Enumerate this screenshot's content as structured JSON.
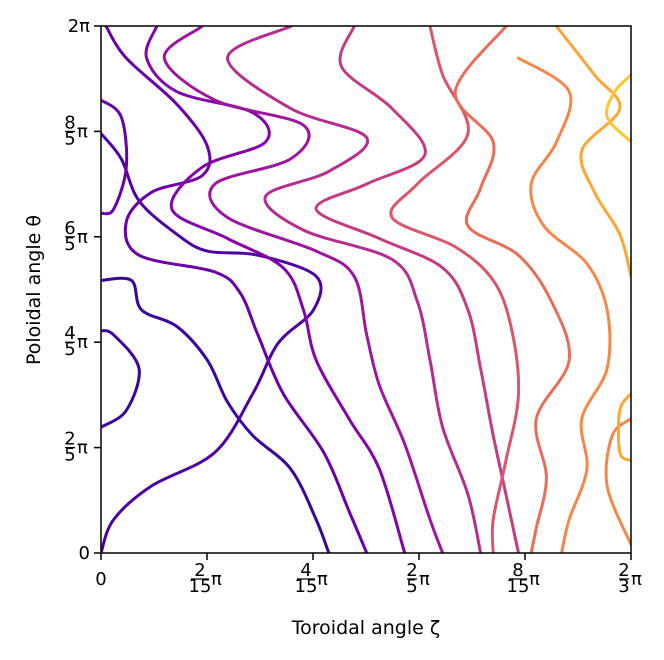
{
  "chart_data": {
    "type": "contour",
    "title": "",
    "xlabel": "Toroidal angle ζ",
    "ylabel": "Poloidal angle θ",
    "xlim": [
      0,
      2.0944
    ],
    "ylim": [
      0,
      6.2832
    ],
    "grid": false,
    "legend": "none",
    "colormap": "plasma",
    "x_ticks": [
      {
        "value": 0,
        "num": "0",
        "den": "",
        "suffix": ""
      },
      {
        "value": 0.41888,
        "num": "2",
        "den": "15",
        "suffix": "π"
      },
      {
        "value": 0.83776,
        "num": "4",
        "den": "15",
        "suffix": "π"
      },
      {
        "value": 1.25664,
        "num": "2",
        "den": "5",
        "suffix": "π"
      },
      {
        "value": 1.67552,
        "num": "8",
        "den": "15",
        "suffix": "π"
      },
      {
        "value": 2.0944,
        "num": "2",
        "den": "3",
        "suffix": "π"
      }
    ],
    "y_ticks": [
      {
        "value": 0,
        "num": "0",
        "den": "",
        "suffix": ""
      },
      {
        "value": 1.25664,
        "num": "2",
        "den": "5",
        "suffix": "π"
      },
      {
        "value": 2.51327,
        "num": "4",
        "den": "5",
        "suffix": "π"
      },
      {
        "value": 3.76991,
        "num": "6",
        "den": "5",
        "suffix": "π"
      },
      {
        "value": 5.02655,
        "num": "8",
        "den": "5",
        "suffix": "π"
      },
      {
        "value": 6.28319,
        "num": "2",
        "den": "",
        "suffix": "π"
      }
    ],
    "contours": [
      {
        "level": 0.0,
        "color": "#3b049a",
        "lines": [
          [
            [
              0,
              1.5
            ],
            [
              0.1,
              1.7
            ],
            [
              0.15,
              2.2
            ],
            [
              0.05,
              2.6
            ],
            [
              0,
              2.65
            ]
          ],
          [
            [
              0,
              3.25
            ],
            [
              0.12,
              3.25
            ],
            [
              0.16,
              2.9
            ],
            [
              0.3,
              2.7
            ],
            [
              0.42,
              2.3
            ],
            [
              0.5,
              1.8
            ],
            [
              0.6,
              1.4
            ],
            [
              0.75,
              1.0
            ],
            [
              0.85,
              0.4
            ],
            [
              0.9,
              0
            ]
          ]
        ]
      },
      {
        "level": 0.1,
        "color": "#4c02a1",
        "lines": [
          [
            [
              0,
              0
            ],
            [
              0.05,
              0.4
            ],
            [
              0.2,
              0.8
            ],
            [
              0.45,
              1.2
            ],
            [
              0.6,
              1.9
            ],
            [
              0.7,
              2.5
            ],
            [
              0.84,
              2.9
            ],
            [
              0.85,
              3.3
            ],
            [
              0.62,
              3.55
            ],
            [
              0.42,
              3.6
            ],
            [
              0.3,
              3.8
            ],
            [
              0.15,
              4.2
            ],
            [
              0.08,
              4.7
            ],
            [
              0,
              5.0
            ]
          ]
        ]
      },
      {
        "level": 0.2,
        "color": "#6a00a8",
        "lines": [
          [
            [
              0.02,
              6.28
            ],
            [
              0.1,
              5.9
            ],
            [
              0.3,
              5.35
            ],
            [
              0.42,
              4.85
            ],
            [
              0.4,
              4.5
            ],
            [
              0.2,
              4.3
            ],
            [
              0.1,
              3.95
            ],
            [
              0.15,
              3.55
            ],
            [
              0.45,
              3.35
            ],
            [
              0.55,
              3.1
            ],
            [
              0.62,
              2.6
            ],
            [
              0.72,
              1.9
            ],
            [
              0.88,
              1.2
            ],
            [
              0.98,
              0.5
            ],
            [
              1.05,
              0
            ]
          ],
          [
            [
              0,
              5.4
            ],
            [
              0.08,
              5.2
            ],
            [
              0.1,
              4.6
            ],
            [
              0.05,
              4.1
            ],
            [
              0,
              4.05
            ]
          ]
        ]
      },
      {
        "level": 0.3,
        "color": "#8405a7",
        "lines": [
          [
            [
              0.22,
              6.28
            ],
            [
              0.18,
              5.9
            ],
            [
              0.3,
              5.5
            ],
            [
              0.6,
              5.25
            ],
            [
              0.65,
              4.9
            ],
            [
              0.4,
              4.6
            ],
            [
              0.28,
              4.1
            ],
            [
              0.5,
              3.75
            ],
            [
              0.72,
              3.4
            ],
            [
              0.8,
              2.9
            ],
            [
              0.85,
              2.3
            ],
            [
              0.98,
              1.6
            ],
            [
              1.1,
              1.0
            ],
            [
              1.2,
              0
            ]
          ]
        ]
      },
      {
        "level": 0.4,
        "color": "#9c179e",
        "lines": [
          [
            [
              0.4,
              6.28
            ],
            [
              0.25,
              5.9
            ],
            [
              0.45,
              5.4
            ],
            [
              0.8,
              5.1
            ],
            [
              0.75,
              4.7
            ],
            [
              0.45,
              4.4
            ],
            [
              0.5,
              4.0
            ],
            [
              0.85,
              3.6
            ],
            [
              1.0,
              3.3
            ],
            [
              1.05,
              2.6
            ],
            [
              1.1,
              2.0
            ],
            [
              1.2,
              1.3
            ],
            [
              1.3,
              0.4
            ],
            [
              1.35,
              0
            ]
          ]
        ]
      },
      {
        "level": 0.5,
        "color": "#b42e8f",
        "lines": [
          [
            [
              0.75,
              6.28
            ],
            [
              0.5,
              5.9
            ],
            [
              0.75,
              5.3
            ],
            [
              1.05,
              4.95
            ],
            [
              0.9,
              4.55
            ],
            [
              0.65,
              4.25
            ],
            [
              0.8,
              3.85
            ],
            [
              1.15,
              3.5
            ],
            [
              1.25,
              3.0
            ],
            [
              1.3,
              2.3
            ],
            [
              1.35,
              1.5
            ],
            [
              1.45,
              0.7
            ],
            [
              1.5,
              0
            ]
          ]
        ]
      },
      {
        "level": 0.6,
        "color": "#c33d80",
        "lines": [
          [
            [
              1.0,
              6.28
            ],
            [
              0.95,
              5.8
            ],
            [
              1.15,
              5.3
            ],
            [
              1.28,
              4.75
            ],
            [
              1.05,
              4.4
            ],
            [
              0.85,
              4.1
            ],
            [
              1.1,
              3.75
            ],
            [
              1.35,
              3.4
            ],
            [
              1.45,
              2.9
            ],
            [
              1.5,
              2.2
            ],
            [
              1.55,
              1.4
            ],
            [
              1.6,
              0.7
            ],
            [
              1.65,
              0
            ]
          ]
        ]
      },
      {
        "level": 0.7,
        "color": "#d8576b",
        "lines": [
          [
            [
              1.3,
              6.28
            ],
            [
              1.35,
              5.7
            ],
            [
              1.45,
              5.0
            ],
            [
              1.25,
              4.4
            ],
            [
              1.15,
              4.0
            ],
            [
              1.4,
              3.65
            ],
            [
              1.55,
              3.25
            ],
            [
              1.62,
              2.7
            ],
            [
              1.65,
              1.9
            ],
            [
              1.6,
              1.1
            ],
            [
              1.55,
              0.4
            ],
            [
              1.55,
              0
            ]
          ]
        ]
      },
      {
        "level": 0.8,
        "color": "#e76f5a",
        "lines": [
          [
            [
              1.6,
              6.28
            ],
            [
              1.4,
              5.5
            ],
            [
              1.55,
              4.9
            ],
            [
              1.5,
              4.35
            ],
            [
              1.45,
              3.9
            ],
            [
              1.65,
              3.55
            ],
            [
              1.78,
              3.0
            ],
            [
              1.85,
              2.3
            ],
            [
              1.72,
              1.6
            ],
            [
              1.76,
              0.9
            ],
            [
              1.72,
              0.3
            ],
            [
              1.7,
              0
            ]
          ]
        ]
      },
      {
        "level": 0.9,
        "color": "#f48849",
        "lines": [
          [
            [
              1.65,
              5.9
            ],
            [
              1.85,
              5.5
            ],
            [
              1.8,
              4.9
            ],
            [
              1.7,
              4.4
            ],
            [
              1.75,
              3.9
            ],
            [
              1.92,
              3.45
            ],
            [
              2.0,
              2.9
            ],
            [
              2.0,
              2.2
            ],
            [
              1.9,
              1.6
            ],
            [
              1.92,
              1.0
            ],
            [
              1.85,
              0.4
            ],
            [
              1.82,
              0
            ]
          ],
          [
            [
              2.0944,
              0.1
            ],
            [
              2.0,
              0.8
            ],
            [
              2.02,
              1.4
            ],
            [
              2.0944,
              1.6
            ]
          ]
        ]
      },
      {
        "level": 1.0,
        "color": "#fca636",
        "lines": [
          [
            [
              1.8,
              6.28
            ],
            [
              1.95,
              5.7
            ],
            [
              2.05,
              5.3
            ],
            [
              1.9,
              4.8
            ],
            [
              1.95,
              4.3
            ],
            [
              2.05,
              3.8
            ],
            [
              2.0944,
              3.3
            ]
          ],
          [
            [
              2.0944,
              1.9
            ],
            [
              2.05,
              1.7
            ],
            [
              2.05,
              1.2
            ],
            [
              2.0944,
              1.1
            ]
          ]
        ]
      },
      {
        "level": 1.1,
        "color": "#fec62f",
        "lines": [
          [
            [
              2.0944,
              5.7
            ],
            [
              2.03,
              5.5
            ],
            [
              2.0,
              5.2
            ],
            [
              2.0944,
              4.9
            ]
          ]
        ]
      }
    ]
  }
}
